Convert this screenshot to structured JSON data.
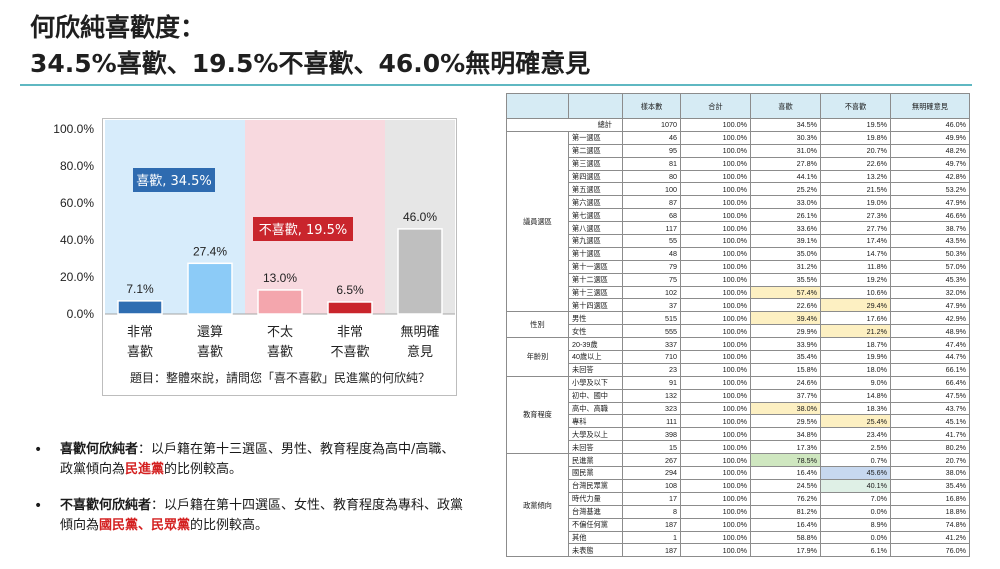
{
  "title": {
    "line1": "何欣純喜歡度：",
    "line2": "34.5%喜歡、19.5%不喜歡、46.0%無明確意見"
  },
  "colors": {
    "accent_rule": "#5fb8c2",
    "like_bg": "#d7ecfb",
    "dislike_bg": "#f8d9df",
    "neutral_bg": "#e6e6e6",
    "like_label_bg": "#2e6bb0",
    "dislike_label_bg": "#c9252c",
    "highlight_yellow": "#fdf0c2",
    "highlight_green": "#cfe7c0",
    "highlight_blue": "#c7d8ef",
    "highlight_lightgreen": "#dff0e6",
    "emphasis_red": "#d42121"
  },
  "chart_data": {
    "type": "bar",
    "categories": [
      "非常\n喜歡",
      "還算\n喜歡",
      "不太\n喜歡",
      "非常\n不喜歡",
      "無明確\n意見"
    ],
    "values": [
      7.1,
      27.4,
      13.0,
      6.5,
      46.0
    ],
    "value_labels": [
      "7.1%",
      "27.4%",
      "13.0%",
      "6.5%",
      "46.0%"
    ],
    "bar_colors": [
      "#2f6db1",
      "#8ccbf7",
      "#f4a6ad",
      "#c9252c",
      "#bfbfbf"
    ],
    "ylim": [
      0,
      100
    ],
    "yticks": [
      0,
      20,
      40,
      60,
      80,
      100
    ],
    "ytick_labels": [
      "0.0%",
      "20.0%",
      "40.0%",
      "60.0%",
      "80.0%",
      "100.0%"
    ],
    "grid": false,
    "group_labels": [
      {
        "text": "喜歡, 34.5%",
        "group": "like"
      },
      {
        "text": "不喜歡, 19.5%",
        "group": "dislike"
      }
    ],
    "note": "題目：整體來說，請問您「喜不喜歡」民進黨的何欣純？"
  },
  "bullets": [
    {
      "heading": "喜歡何欣純者",
      "text_before": "：以戶籍在第十三選區、男性、教育程度為高中/高職、政黨傾向為",
      "highlight": "民進黨",
      "text_after": "的比例較高。"
    },
    {
      "heading": "不喜歡何欣純者",
      "text_before": "：以戶籍在第十四選區、女性、教育程度為專科、政黨傾向為",
      "highlight": "國民黨、民眾黨",
      "text_after": "的比例較高。"
    }
  ],
  "table": {
    "headers": [
      "樣本數",
      "合計",
      "喜歡",
      "不喜歡",
      "無明確意見"
    ],
    "total": {
      "label": "總計",
      "values": [
        "1070",
        "100.0%",
        "34.5%",
        "19.5%",
        "46.0%"
      ]
    },
    "groups": [
      {
        "name": "議員選區",
        "rows": [
          {
            "label": "第一選區",
            "values": [
              "46",
              "100.0%",
              "30.3%",
              "19.8%",
              "49.9%"
            ]
          },
          {
            "label": "第二選區",
            "values": [
              "95",
              "100.0%",
              "31.0%",
              "20.7%",
              "48.2%"
            ]
          },
          {
            "label": "第三選區",
            "values": [
              "81",
              "100.0%",
              "27.8%",
              "22.6%",
              "49.7%"
            ]
          },
          {
            "label": "第四選區",
            "values": [
              "80",
              "100.0%",
              "44.1%",
              "13.2%",
              "42.8%"
            ]
          },
          {
            "label": "第五選區",
            "values": [
              "100",
              "100.0%",
              "25.2%",
              "21.5%",
              "53.2%"
            ]
          },
          {
            "label": "第六選區",
            "values": [
              "87",
              "100.0%",
              "33.0%",
              "19.0%",
              "47.9%"
            ]
          },
          {
            "label": "第七選區",
            "values": [
              "68",
              "100.0%",
              "26.1%",
              "27.3%",
              "46.6%"
            ]
          },
          {
            "label": "第八選區",
            "values": [
              "117",
              "100.0%",
              "33.6%",
              "27.7%",
              "38.7%"
            ]
          },
          {
            "label": "第九選區",
            "values": [
              "55",
              "100.0%",
              "39.1%",
              "17.4%",
              "43.5%"
            ]
          },
          {
            "label": "第十選區",
            "values": [
              "48",
              "100.0%",
              "35.0%",
              "14.7%",
              "50.3%"
            ]
          },
          {
            "label": "第十一選區",
            "values": [
              "79",
              "100.0%",
              "31.2%",
              "11.8%",
              "57.0%"
            ]
          },
          {
            "label": "第十二選區",
            "values": [
              "75",
              "100.0%",
              "35.5%",
              "19.2%",
              "45.3%"
            ]
          },
          {
            "label": "第十三選區",
            "values": [
              "102",
              "100.0%",
              "57.4%",
              "10.6%",
              "32.0%"
            ],
            "hl": {
              "2": "highlight_yellow"
            }
          },
          {
            "label": "第十四選區",
            "values": [
              "37",
              "100.0%",
              "22.6%",
              "29.4%",
              "47.9%"
            ],
            "hl": {
              "3": "highlight_yellow"
            }
          }
        ]
      },
      {
        "name": "性別",
        "rows": [
          {
            "label": "男性",
            "values": [
              "515",
              "100.0%",
              "39.4%",
              "17.6%",
              "42.9%"
            ],
            "hl": {
              "2": "highlight_yellow"
            }
          },
          {
            "label": "女性",
            "values": [
              "555",
              "100.0%",
              "29.9%",
              "21.2%",
              "48.9%"
            ],
            "hl": {
              "3": "highlight_yellow"
            }
          }
        ]
      },
      {
        "name": "年齡別",
        "rows": [
          {
            "label": "20-39歲",
            "values": [
              "337",
              "100.0%",
              "33.9%",
              "18.7%",
              "47.4%"
            ]
          },
          {
            "label": "40歲以上",
            "values": [
              "710",
              "100.0%",
              "35.4%",
              "19.9%",
              "44.7%"
            ]
          },
          {
            "label": "未回答",
            "values": [
              "23",
              "100.0%",
              "15.8%",
              "18.0%",
              "66.1%"
            ]
          }
        ]
      },
      {
        "name": "教育程度",
        "rows": [
          {
            "label": "小學及以下",
            "values": [
              "91",
              "100.0%",
              "24.6%",
              "9.0%",
              "66.4%"
            ]
          },
          {
            "label": "初中、國中",
            "values": [
              "132",
              "100.0%",
              "37.7%",
              "14.8%",
              "47.5%"
            ]
          },
          {
            "label": "高中、高職",
            "values": [
              "323",
              "100.0%",
              "38.0%",
              "18.3%",
              "43.7%"
            ],
            "hl": {
              "2": "highlight_yellow"
            }
          },
          {
            "label": "專科",
            "values": [
              "111",
              "100.0%",
              "29.5%",
              "25.4%",
              "45.1%"
            ],
            "hl": {
              "3": "highlight_yellow"
            }
          },
          {
            "label": "大學及以上",
            "values": [
              "398",
              "100.0%",
              "34.8%",
              "23.4%",
              "41.7%"
            ]
          },
          {
            "label": "未回答",
            "values": [
              "15",
              "100.0%",
              "17.3%",
              "2.5%",
              "80.2%"
            ]
          }
        ]
      },
      {
        "name": "政黨傾向",
        "rows": [
          {
            "label": "民進黨",
            "values": [
              "267",
              "100.0%",
              "78.5%",
              "0.7%",
              "20.7%"
            ],
            "hl": {
              "2": "highlight_green"
            }
          },
          {
            "label": "國民黨",
            "values": [
              "294",
              "100.0%",
              "16.4%",
              "45.6%",
              "38.0%"
            ],
            "hl": {
              "3": "highlight_blue"
            }
          },
          {
            "label": "台灣民眾黨",
            "values": [
              "108",
              "100.0%",
              "24.5%",
              "40.1%",
              "35.4%"
            ],
            "hl": {
              "3": "highlight_lightgreen"
            }
          },
          {
            "label": "時代力量",
            "values": [
              "17",
              "100.0%",
              "76.2%",
              "7.0%",
              "16.8%"
            ]
          },
          {
            "label": "台灣基進",
            "values": [
              "8",
              "100.0%",
              "81.2%",
              "0.0%",
              "18.8%"
            ]
          },
          {
            "label": "不偏任何黨",
            "values": [
              "187",
              "100.0%",
              "16.4%",
              "8.9%",
              "74.8%"
            ]
          },
          {
            "label": "其他",
            "values": [
              "1",
              "100.0%",
              "58.8%",
              "0.0%",
              "41.2%"
            ]
          },
          {
            "label": "未表態",
            "values": [
              "187",
              "100.0%",
              "17.9%",
              "6.1%",
              "76.0%"
            ]
          }
        ]
      }
    ]
  }
}
